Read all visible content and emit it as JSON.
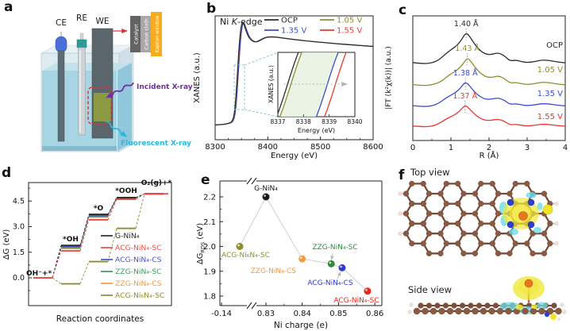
{
  "panels": {
    "a": {
      "letter": "a",
      "electrode_labels": [
        "CE",
        "RE",
        "WE"
      ],
      "stack_labels": [
        "Catalyst",
        "Carbon cloth",
        "Kapton window"
      ],
      "stack_colors": [
        "#636363",
        "#a8a8a8",
        "#f5ad1d"
      ],
      "incident_xray_label": "Incident X-ray",
      "incident_xray_color": "#7030a0",
      "fluorescent_xray_label": "Fluorescent X-ray",
      "fluorescent_xray_color": "#2bb8e0",
      "zoom_box_color": "#e03030"
    },
    "b": {
      "letter": "b",
      "annotation": {
        "pre": "Ni ",
        "italic": "K",
        "post": "-edge"
      }
    },
    "c": {
      "letter": "c"
    },
    "d": {
      "letter": "d"
    },
    "e": {
      "letter": "e"
    },
    "f": {
      "letter": "f",
      "top_view_label": "Top view",
      "side_view_label": "Side view",
      "atom_colors": {
        "C": "#8a5a44",
        "H": "#f2e0dc",
        "N": "#2e3fd0",
        "Ni": "#e87820",
        "S": "#f0e52c",
        "charge_gain": "#f0e838",
        "charge_loss": "#6adce8"
      }
    }
  },
  "chart_data": [
    {
      "id": "xanes",
      "type": "line",
      "title": "Ni K-edge",
      "xlabel": "Energy (eV)",
      "ylabel": "XANES (a.u.)",
      "xlim": [
        8300,
        8600
      ],
      "xticks": [
        8300,
        8400,
        8500,
        8600
      ],
      "legend_position": "top",
      "series": [
        {
          "name": "OCP",
          "color": "#2b2b2b",
          "edge_shift_eV": 0
        },
        {
          "name": "1.05 V",
          "color": "#8e8e2f",
          "edge_shift_eV": 0.1
        },
        {
          "name": "1.35 V",
          "color": "#3a4ecc",
          "edge_shift_eV": 1.55
        },
        {
          "name": "1.55 V",
          "color": "#e8392e",
          "edge_shift_eV": 1.85
        }
      ],
      "base_curve": [
        [
          8300,
          0.075
        ],
        [
          8315,
          0.08
        ],
        [
          8326,
          0.09
        ],
        [
          8332,
          0.105
        ],
        [
          8336,
          0.16
        ],
        [
          8339,
          0.3
        ],
        [
          8342,
          0.52
        ],
        [
          8345,
          0.75
        ],
        [
          8348,
          0.92
        ],
        [
          8351,
          1.0
        ],
        [
          8354,
          0.99
        ],
        [
          8358,
          0.93
        ],
        [
          8363,
          0.87
        ],
        [
          8369,
          0.835
        ],
        [
          8376,
          0.82
        ],
        [
          8384,
          0.835
        ],
        [
          8392,
          0.858
        ],
        [
          8400,
          0.868
        ],
        [
          8412,
          0.868
        ],
        [
          8428,
          0.858
        ],
        [
          8448,
          0.845
        ],
        [
          8472,
          0.832
        ],
        [
          8500,
          0.82
        ],
        [
          8532,
          0.806
        ],
        [
          8565,
          0.794
        ],
        [
          8600,
          0.782
        ]
      ]
    },
    {
      "id": "xanes-inset",
      "type": "line",
      "xlabel": "Energy (eV)",
      "ylabel": "XANES (a.u.)",
      "xlim": [
        8337,
        8340
      ],
      "xticks": [
        8337,
        8338,
        8339,
        8340
      ],
      "series": [
        {
          "name": "OCP",
          "color": "#2b2b2b",
          "x_bottom": 8336.95,
          "x_top": 8337.8
        },
        {
          "name": "1.05 V",
          "color": "#8e8e2f",
          "x_bottom": 8337.08,
          "x_top": 8337.93
        },
        {
          "name": "1.35 V",
          "color": "#3a4ecc",
          "x_bottom": 8338.5,
          "x_top": 8339.35
        },
        {
          "name": "1.55 V",
          "color": "#e8392e",
          "x_bottom": 8338.82,
          "x_top": 8339.66
        }
      ],
      "shaded_band_between": [
        "1.05 V",
        "1.35 V"
      ],
      "band_color": "#e6f2e0"
    },
    {
      "id": "exafs-ft",
      "type": "line",
      "xlabel": "R (Å)",
      "ylabel": "|FT (k²χ(k))| (a.u.)",
      "xlim": [
        0,
        4
      ],
      "xticks": [
        0,
        1,
        2,
        3,
        4
      ],
      "series": [
        {
          "name": "OCP",
          "color": "#2b2b2b",
          "peak_label": "1.40 Å",
          "peak_R": 1.4
        },
        {
          "name": "1.05 V",
          "color": "#8e8e2f",
          "peak_label": "1.43 Å",
          "peak_R": 1.43
        },
        {
          "name": "1.35 V",
          "color": "#3a4ecc",
          "peak_label": "1.38 Å",
          "peak_R": 1.38
        },
        {
          "name": "1.55 V",
          "color": "#e8392e",
          "peak_label": "1.37 Å",
          "peak_R": 1.37
        }
      ],
      "base_shape": [
        [
          0,
          0.1
        ],
        [
          0.25,
          0.075
        ],
        [
          0.5,
          0.09
        ],
        [
          0.7,
          0.16
        ],
        [
          0.85,
          0.27
        ],
        [
          1.0,
          0.36
        ],
        [
          1.15,
          0.44
        ],
        [
          1.28,
          0.56
        ],
        [
          1.4,
          0.72
        ],
        [
          1.52,
          0.6
        ],
        [
          1.65,
          0.44
        ],
        [
          1.8,
          0.32
        ],
        [
          1.95,
          0.26
        ],
        [
          2.1,
          0.27
        ],
        [
          2.25,
          0.3
        ],
        [
          2.4,
          0.24
        ],
        [
          2.55,
          0.13
        ],
        [
          2.7,
          0.15
        ],
        [
          2.85,
          0.12
        ],
        [
          3.0,
          0.1
        ],
        [
          3.2,
          0.12
        ],
        [
          3.4,
          0.155
        ],
        [
          3.6,
          0.14
        ],
        [
          3.8,
          0.11
        ],
        [
          4.0,
          0.095
        ]
      ]
    },
    {
      "id": "free-energy-steps",
      "type": "step",
      "xlabel": "Reaction coordinates",
      "ylabel": "ΔG (eV)",
      "yticks": [
        0.0,
        1.5,
        3.0,
        4.5
      ],
      "step_labels": [
        "OH⁻+*",
        "*OH",
        "*O",
        "*OOH",
        "O₂(g)+*"
      ],
      "series": [
        {
          "name": "G-NiN₄",
          "color": "#2b2b2b",
          "values": [
            0,
            1.9,
            3.72,
            4.7,
            4.92
          ]
        },
        {
          "name": "ACG-NiN₄-SC",
          "color": "#e85048",
          "values": [
            0,
            1.58,
            3.4,
            4.6,
            4.92
          ]
        },
        {
          "name": "ACG-NiN₄-CS",
          "color": "#4a55cc",
          "values": [
            0,
            1.84,
            3.65,
            4.7,
            4.92
          ]
        },
        {
          "name": "ZZG-NiN₄-SC",
          "color": "#3f9a5f",
          "values": [
            0,
            1.78,
            3.6,
            4.67,
            4.92
          ]
        },
        {
          "name": "ZZG-NiN₄-CS",
          "color": "#f59a40",
          "values": [
            0,
            1.71,
            3.56,
            4.64,
            4.92
          ]
        },
        {
          "name": "ACG-Ni₆N₄-SC",
          "color": "#8e8e2f",
          "values": [
            0,
            -0.35,
            0.95,
            2.9,
            4.92
          ]
        }
      ]
    },
    {
      "id": "rds-scatter",
      "type": "scatter",
      "xlabel": "Ni charge (e)",
      "ylabel": {
        "base": "ΔG",
        "sub": "RDS",
        "unit": " (eV)"
      },
      "yticks": [
        1.8,
        1.9,
        2.0,
        2.1,
        2.2
      ],
      "xticks": [
        -0.14,
        0.83,
        0.84,
        0.85,
        0.86
      ],
      "x_axis_break": true,
      "points": [
        {
          "name": "G-NiN₄",
          "charge": 0.83,
          "dG": 2.2,
          "color": "#1a1a1a"
        },
        {
          "name": "ACG-Ni₆N₄-SC",
          "charge": -0.14,
          "dG": 2.0,
          "color": "#8e8e2f"
        },
        {
          "name": "ZZG-NiN₄-CS",
          "charge": 0.84,
          "dG": 1.95,
          "color": "#f59a40"
        },
        {
          "name": "ZZG-NiN₄-SC",
          "charge": 0.848,
          "dG": 1.93,
          "color": "#2e8b3f"
        },
        {
          "name": "ACG-NiN₄-CS",
          "charge": 0.851,
          "dG": 1.914,
          "color": "#2f3ad8"
        },
        {
          "name": "ACG-NiN₄-SC",
          "charge": 0.858,
          "dG": 1.82,
          "color": "#e8281e"
        }
      ]
    }
  ]
}
